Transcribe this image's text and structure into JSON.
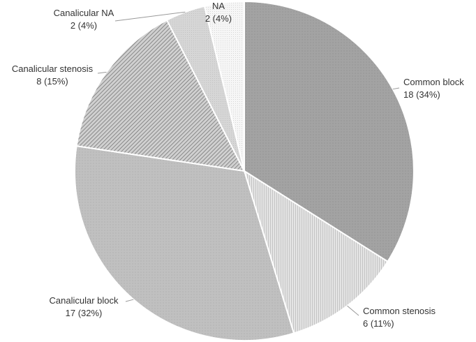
{
  "chart_data": {
    "type": "pie",
    "categories": [
      "Common block",
      "Common stenosis",
      "Canalicular block",
      "Canalicular stenosis",
      "Canalicular NA",
      "NA"
    ],
    "values": [
      18,
      6,
      17,
      8,
      2,
      2
    ],
    "value_labels": [
      "18 (34%)",
      "6 (11%)",
      "17 (32%)",
      "8 (15%)",
      "2 (4%)",
      "2 (4%)"
    ],
    "colors": [
      "#a3a3a3",
      "#dcdcdc",
      "#bdbdbd",
      "#9c9c9c",
      "#d6d6d6",
      "#f0f0f0"
    ]
  }
}
